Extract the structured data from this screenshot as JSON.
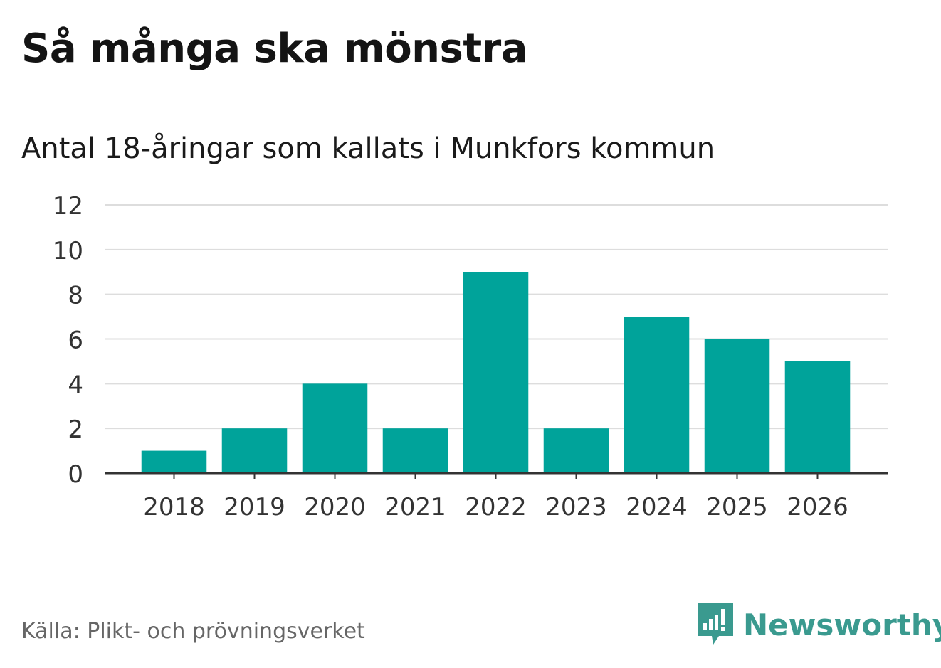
{
  "title": "Så många ska mönstra",
  "subtitle": "Antal 18-åringar som kallats i Munkfors kommun",
  "source": "Källa: Plikt- och prövningsverket",
  "brand": {
    "name": "Newsworthy",
    "icon": "newsworthy-logo-icon",
    "color": "#3a9a8f"
  },
  "colors": {
    "bar": "#00a39a",
    "grid": "#dddddd",
    "axis": "#333333",
    "tick_text": "#333333"
  },
  "chart_data": {
    "type": "bar",
    "title": "Så många ska mönstra",
    "subtitle": "Antal 18-åringar som kallats i Munkfors kommun",
    "xlabel": "",
    "ylabel": "",
    "categories": [
      "2018",
      "2019",
      "2020",
      "2021",
      "2022",
      "2023",
      "2024",
      "2025",
      "2026"
    ],
    "values": [
      1,
      2,
      4,
      2,
      9,
      2,
      7,
      6,
      5
    ],
    "ylim": [
      0,
      12
    ],
    "yticks": [
      "0",
      "2",
      "4",
      "6",
      "8",
      "10",
      "12"
    ],
    "grid": true,
    "legend": "none"
  }
}
